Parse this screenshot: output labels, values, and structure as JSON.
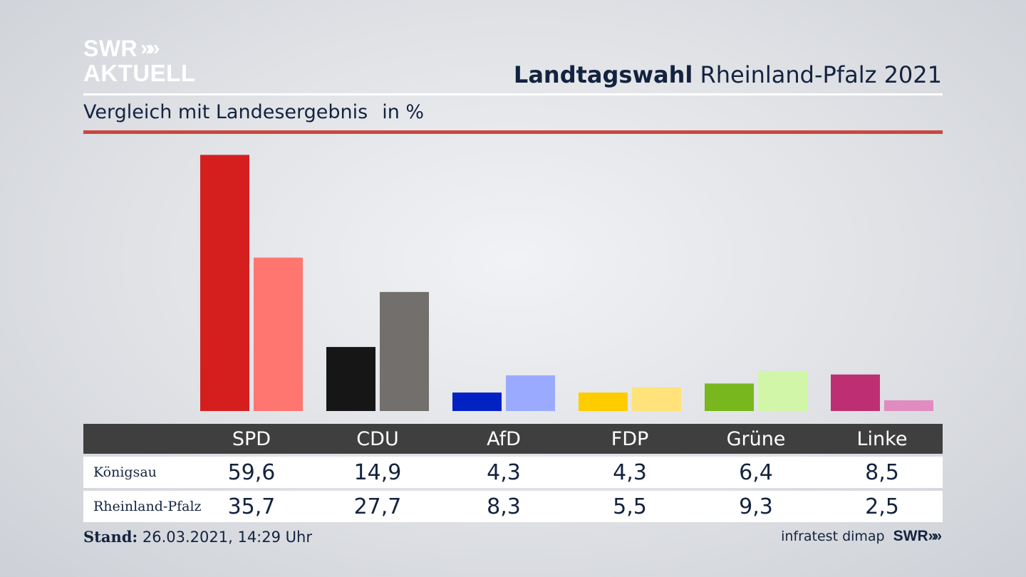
{
  "brand": {
    "line1": "SWR",
    "line2": "AKTUELL",
    "chevrons": "»"
  },
  "header": {
    "title_bold": "Landtagswahl",
    "title_rest": "Rheinland-Pfalz 2021"
  },
  "subtitle": {
    "text": "Vergleich mit Landesergebnis",
    "unit": "in %"
  },
  "colors": {
    "accent_rule": "#c9483e",
    "table_header": "#3f3f3f"
  },
  "chart_data": {
    "type": "bar",
    "categories": [
      "SPD",
      "CDU",
      "AfD",
      "FDP",
      "Grüne",
      "Linke"
    ],
    "series": [
      {
        "name": "Königsau",
        "values": [
          59.6,
          14.9,
          4.3,
          4.3,
          6.4,
          8.5
        ],
        "labels": [
          "59,6",
          "14,9",
          "4,3",
          "4,3",
          "6,4",
          "8,5"
        ],
        "colors": [
          "#d51f1f",
          "#161616",
          "#0322c4",
          "#ffcc00",
          "#78b81e",
          "#bd2f72"
        ]
      },
      {
        "name": "Rheinland-Pfalz",
        "values": [
          35.7,
          27.7,
          8.3,
          5.5,
          9.3,
          2.5
        ],
        "labels": [
          "35,7",
          "27,7",
          "8,3",
          "5,5",
          "9,3",
          "2,5"
        ],
        "colors": [
          "#ff7670",
          "#736f6c",
          "#9aabff",
          "#ffe27a",
          "#d2f6a8",
          "#e08cbf"
        ]
      }
    ],
    "ylim": [
      0,
      60
    ],
    "grid": false,
    "legend": "table-below"
  },
  "footer": {
    "stand_label": "Stand:",
    "stand_value": "26.03.2021, 14:29 Uhr",
    "source": "infratest dimap",
    "brand": "SWR"
  }
}
